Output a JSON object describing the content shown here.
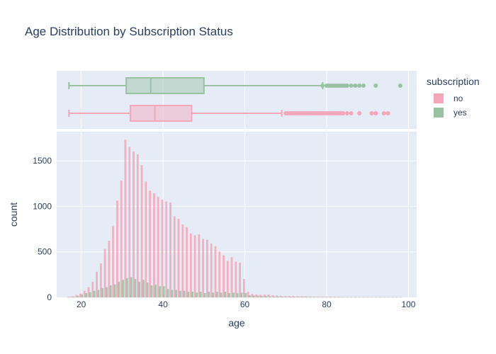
{
  "chart_data": {
    "type": "histogram",
    "title": "Age Distribution by Subscription Status",
    "xlabel": "age",
    "ylabel": "count",
    "xlim": [
      14,
      102
    ],
    "ylim": [
      0,
      1820
    ],
    "x_ticks": [
      20,
      40,
      60,
      80,
      100
    ],
    "y_ticks": [
      0,
      500,
      1000,
      1500
    ],
    "grid": true,
    "legend": {
      "title": "subscription",
      "placement": "top-right",
      "entries": [
        {
          "name": "no",
          "color": "#f4a7b9"
        },
        {
          "name": "yes",
          "color": "#99c2a2"
        }
      ]
    },
    "colors": {
      "no": "#f4a7b9",
      "yes": "#99c2a2",
      "plot_bg": "#e5ecf6",
      "text": "#2a3f5f"
    },
    "histogram": {
      "bin_width": 1,
      "x": [
        17,
        18,
        19,
        20,
        21,
        22,
        23,
        24,
        25,
        26,
        27,
        28,
        29,
        30,
        31,
        32,
        33,
        34,
        35,
        36,
        37,
        38,
        39,
        40,
        41,
        42,
        43,
        44,
        45,
        46,
        47,
        48,
        49,
        50,
        51,
        52,
        53,
        54,
        55,
        56,
        57,
        58,
        59,
        60,
        61,
        62,
        63,
        64,
        65,
        66,
        67,
        68,
        69,
        70,
        71,
        72,
        73,
        74,
        75,
        76,
        77,
        78,
        79,
        80,
        81,
        82,
        83,
        84,
        85,
        86,
        87,
        88,
        89,
        90,
        91,
        92,
        93,
        94,
        95,
        96,
        97,
        98
      ],
      "series": [
        {
          "name": "no",
          "values": [
            5,
            10,
            25,
            40,
            70,
            110,
            170,
            280,
            370,
            530,
            620,
            780,
            1060,
            1280,
            1730,
            1650,
            1600,
            1570,
            1450,
            1270,
            1170,
            1140,
            1100,
            1070,
            1050,
            1040,
            890,
            860,
            800,
            770,
            700,
            680,
            690,
            640,
            630,
            590,
            560,
            500,
            460,
            400,
            440,
            390,
            380,
            200,
            60,
            35,
            30,
            25,
            30,
            30,
            22,
            18,
            15,
            12,
            12,
            12,
            10,
            10,
            10,
            8,
            8,
            6,
            6,
            5,
            5,
            4,
            4,
            3,
            2,
            2,
            2,
            2,
            1,
            1,
            1,
            1,
            1,
            1,
            1,
            1,
            1,
            1
          ]
        },
        {
          "name": "yes",
          "values": [
            3,
            5,
            15,
            30,
            45,
            55,
            70,
            80,
            100,
            110,
            130,
            140,
            170,
            190,
            210,
            220,
            200,
            170,
            190,
            160,
            130,
            140,
            120,
            120,
            90,
            80,
            80,
            70,
            70,
            60,
            60,
            50,
            60,
            45,
            60,
            50,
            60,
            50,
            60,
            45,
            50,
            45,
            50,
            45,
            20,
            18,
            15,
            12,
            12,
            10,
            8,
            8,
            7,
            6,
            6,
            5,
            5,
            5,
            4,
            4,
            3,
            3,
            3,
            2,
            2,
            2,
            2,
            1,
            1,
            1,
            1,
            1,
            1,
            1,
            1,
            1,
            1,
            1,
            1,
            1,
            1,
            1
          ]
        }
      ]
    },
    "boxplot": {
      "series": [
        {
          "name": "yes",
          "min": 17,
          "q1": 31,
          "median": 37,
          "q3": 50,
          "upper_fence": 79,
          "outliers": [
            79,
            80,
            80.5,
            81,
            81.5,
            82,
            82.5,
            83,
            83.5,
            84,
            84.5,
            85,
            86,
            87,
            88,
            89,
            92,
            98
          ]
        },
        {
          "name": "no",
          "min": 17,
          "q1": 32,
          "median": 38,
          "q3": 47,
          "upper_fence": 69,
          "outliers": [
            70,
            70.5,
            71,
            71.5,
            72,
            72.5,
            73,
            73.5,
            74,
            74.5,
            75,
            75.5,
            76,
            76.5,
            77,
            77.5,
            78,
            78.5,
            79,
            79.5,
            80,
            80.5,
            81,
            81.5,
            82,
            82.5,
            83,
            83.5,
            84,
            85,
            86,
            88,
            91,
            92,
            94,
            95
          ]
        }
      ]
    }
  }
}
